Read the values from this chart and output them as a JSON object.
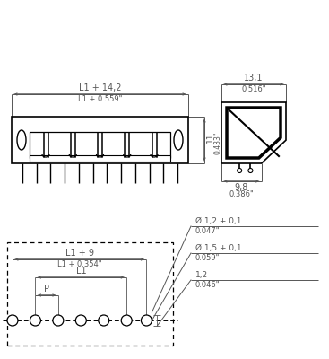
{
  "bg_color": "#ffffff",
  "lc": "#000000",
  "dc": "#555555",
  "top_view": {
    "label_l1_14": "L1 + 14,2",
    "label_l1_559": "L1 + 0.559\"",
    "label_11": "11",
    "label_433": "0.433\""
  },
  "side_view": {
    "label_131": "13,1",
    "label_516": "0.516\"",
    "label_98": "9,8",
    "label_386": "0.386\""
  },
  "bottom_view": {
    "label_l1_9": "L1 + 9",
    "label_l1_354": "L1 + 0.354\"",
    "label_l1": "L1",
    "label_p": "P",
    "label_d12": "Ø 1,2 + 0,1",
    "label_047": "0.047\"",
    "label_d15": "Ø 1,5 + 0,1",
    "label_059": "0.059\"",
    "label_12": "1,2",
    "label_046": "0.046\""
  }
}
